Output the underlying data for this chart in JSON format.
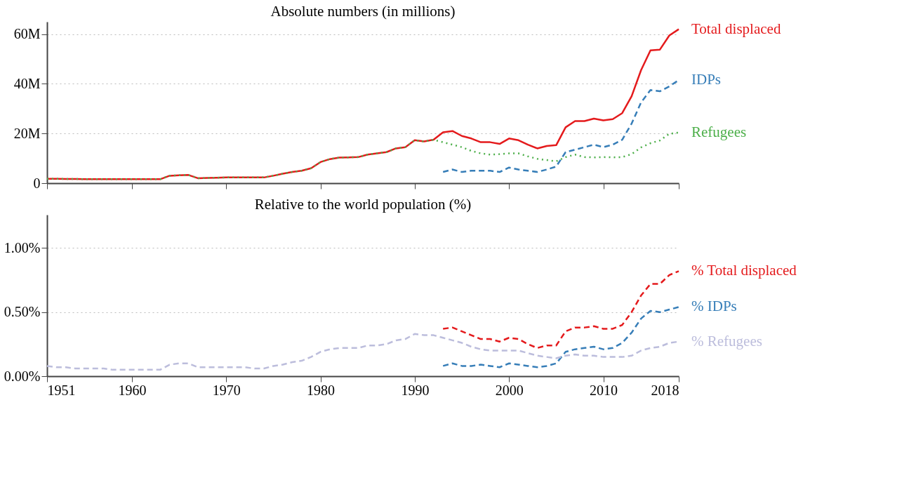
{
  "chart_data": [
    {
      "type": "line",
      "title": "Absolute numbers (in millions)",
      "xlim": [
        1951,
        2018
      ],
      "xticks": [
        1951,
        1960,
        1970,
        1980,
        1990,
        2000,
        2010,
        2018
      ],
      "ylim": [
        0,
        65
      ],
      "yticks": [
        {
          "value": 0,
          "label": "0"
        },
        {
          "value": 20,
          "label": "20M"
        },
        {
          "value": 40,
          "label": "40M"
        },
        {
          "value": 60,
          "label": "60M"
        }
      ],
      "grid": "y",
      "tick_labels": "y",
      "x": [
        1951,
        1952,
        1953,
        1954,
        1955,
        1956,
        1957,
        1958,
        1959,
        1960,
        1961,
        1962,
        1963,
        1964,
        1965,
        1966,
        1967,
        1968,
        1969,
        1970,
        1971,
        1972,
        1973,
        1974,
        1975,
        1976,
        1977,
        1978,
        1979,
        1980,
        1981,
        1982,
        1983,
        1984,
        1985,
        1986,
        1987,
        1988,
        1989,
        1990,
        1991,
        1992,
        1993,
        1994,
        1995,
        1996,
        1997,
        1998,
        1999,
        2000,
        2001,
        2002,
        2003,
        2004,
        2005,
        2006,
        2007,
        2008,
        2009,
        2010,
        2011,
        2012,
        2013,
        2014,
        2015,
        2016,
        2017,
        2018
      ],
      "series": [
        {
          "name": "Total displaced",
          "color": "#e41a1c",
          "line_style": "solid",
          "values": [
            1.8,
            1.8,
            1.7,
            1.7,
            1.6,
            1.6,
            1.6,
            1.6,
            1.6,
            1.6,
            1.6,
            1.6,
            1.6,
            3.0,
            3.2,
            3.3,
            2.0,
            2.1,
            2.2,
            2.3,
            2.3,
            2.3,
            2.3,
            2.3,
            3.0,
            3.8,
            4.5,
            5.0,
            6.0,
            8.5,
            9.7,
            10.3,
            10.4,
            10.5,
            11.5,
            12.0,
            12.5,
            14.0,
            14.5,
            17.3,
            16.8,
            17.5,
            20.5,
            21.0,
            19.0,
            18.0,
            16.5,
            16.5,
            15.8,
            18.0,
            17.3,
            15.5,
            14.0,
            15.0,
            15.3,
            22.5,
            25.0,
            25.0,
            26.0,
            25.3,
            25.8,
            28.2,
            35.0,
            45.5,
            53.5,
            53.8,
            59.5,
            62.0
          ]
        },
        {
          "name": "IDPs",
          "color": "#377eb8",
          "line_style": "dashed",
          "x": [
            1993,
            1994,
            1995,
            1996,
            1997,
            1998,
            1999,
            2000,
            2001,
            2002,
            2003,
            2004,
            2005,
            2006,
            2007,
            2008,
            2009,
            2010,
            2011,
            2012,
            2013,
            2014,
            2015,
            2016,
            2017,
            2018
          ],
          "values": [
            4.5,
            5.5,
            4.5,
            5.0,
            5.0,
            5.0,
            4.5,
            6.3,
            5.5,
            5.0,
            4.5,
            5.5,
            6.7,
            12.5,
            13.5,
            14.5,
            15.5,
            14.5,
            15.5,
            17.5,
            24.0,
            32.5,
            37.5,
            37.0,
            39.0,
            41.5
          ]
        },
        {
          "name": "Refugees",
          "color": "#4daf4a",
          "line_style": "dotted",
          "values": [
            1.8,
            1.8,
            1.7,
            1.7,
            1.6,
            1.6,
            1.6,
            1.6,
            1.6,
            1.6,
            1.6,
            1.6,
            1.6,
            3.0,
            3.2,
            3.3,
            2.0,
            2.1,
            2.2,
            2.3,
            2.3,
            2.3,
            2.3,
            2.3,
            3.0,
            3.8,
            4.5,
            5.0,
            6.0,
            8.5,
            9.7,
            10.3,
            10.4,
            10.5,
            11.5,
            12.0,
            12.5,
            14.0,
            14.5,
            17.3,
            16.8,
            17.5,
            16.5,
            15.5,
            14.5,
            13.0,
            12.0,
            11.5,
            11.7,
            12.0,
            12.0,
            10.8,
            9.8,
            9.3,
            8.8,
            10.5,
            11.5,
            10.5,
            10.4,
            10.5,
            10.4,
            10.5,
            11.7,
            14.4,
            16.1,
            17.2,
            19.9,
            20.4
          ]
        }
      ]
    },
    {
      "type": "line",
      "title": "Relative to the world population (%)",
      "xlim": [
        1951,
        2018
      ],
      "xticks": [
        1951,
        1960,
        1970,
        1980,
        1990,
        2000,
        2010,
        2018
      ],
      "ylim": [
        0,
        1.26
      ],
      "yticks": [
        {
          "value": 0,
          "label": "0.00%"
        },
        {
          "value": 0.5,
          "label": "0.50%"
        },
        {
          "value": 1,
          "label": "1.00%"
        }
      ],
      "grid": "y",
      "x": [
        1951,
        1952,
        1953,
        1954,
        1955,
        1956,
        1957,
        1958,
        1959,
        1960,
        1961,
        1962,
        1963,
        1964,
        1965,
        1966,
        1967,
        1968,
        1969,
        1970,
        1971,
        1972,
        1973,
        1974,
        1975,
        1976,
        1977,
        1978,
        1979,
        1980,
        1981,
        1982,
        1983,
        1984,
        1985,
        1986,
        1987,
        1988,
        1989,
        1990,
        1991,
        1992,
        1993,
        1994,
        1995,
        1996,
        1997,
        1998,
        1999,
        2000,
        2001,
        2002,
        2003,
        2004,
        2005,
        2006,
        2007,
        2008,
        2009,
        2010,
        2011,
        2012,
        2013,
        2014,
        2015,
        2016,
        2017,
        2018
      ],
      "series": [
        {
          "name": "% Total displaced",
          "color": "#e41a1c",
          "line_style": "dashed",
          "x": [
            1993,
            1994,
            1995,
            1996,
            1997,
            1998,
            1999,
            2000,
            2001,
            2002,
            2003,
            2004,
            2005,
            2006,
            2007,
            2008,
            2009,
            2010,
            2011,
            2012,
            2013,
            2014,
            2015,
            2016,
            2017,
            2018
          ],
          "values": [
            0.37,
            0.38,
            0.35,
            0.32,
            0.29,
            0.29,
            0.27,
            0.3,
            0.29,
            0.25,
            0.22,
            0.24,
            0.24,
            0.35,
            0.38,
            0.38,
            0.39,
            0.37,
            0.37,
            0.4,
            0.5,
            0.63,
            0.72,
            0.72,
            0.79,
            0.82
          ]
        },
        {
          "name": "% IDPs",
          "color": "#377eb8",
          "line_style": "dashed",
          "x": [
            1993,
            1994,
            1995,
            1996,
            1997,
            1998,
            1999,
            2000,
            2001,
            2002,
            2003,
            2004,
            2005,
            2006,
            2007,
            2008,
            2009,
            2010,
            2011,
            2012,
            2013,
            2014,
            2015,
            2016,
            2017,
            2018
          ],
          "values": [
            0.08,
            0.1,
            0.08,
            0.08,
            0.09,
            0.08,
            0.07,
            0.1,
            0.09,
            0.08,
            0.07,
            0.08,
            0.1,
            0.19,
            0.21,
            0.22,
            0.23,
            0.21,
            0.22,
            0.26,
            0.34,
            0.45,
            0.51,
            0.5,
            0.52,
            0.54
          ]
        },
        {
          "name": "% Refugees",
          "color": "#bcbddc",
          "line_style": "dashed",
          "values": [
            0.08,
            0.07,
            0.07,
            0.06,
            0.06,
            0.06,
            0.06,
            0.05,
            0.05,
            0.05,
            0.05,
            0.05,
            0.05,
            0.09,
            0.1,
            0.1,
            0.07,
            0.07,
            0.07,
            0.07,
            0.07,
            0.07,
            0.06,
            0.06,
            0.08,
            0.09,
            0.11,
            0.12,
            0.15,
            0.19,
            0.21,
            0.22,
            0.22,
            0.22,
            0.24,
            0.24,
            0.25,
            0.28,
            0.29,
            0.33,
            0.32,
            0.32,
            0.3,
            0.28,
            0.26,
            0.23,
            0.21,
            0.2,
            0.2,
            0.2,
            0.2,
            0.18,
            0.16,
            0.15,
            0.14,
            0.16,
            0.17,
            0.16,
            0.16,
            0.15,
            0.15,
            0.15,
            0.16,
            0.2,
            0.22,
            0.23,
            0.26,
            0.27
          ]
        }
      ]
    }
  ]
}
